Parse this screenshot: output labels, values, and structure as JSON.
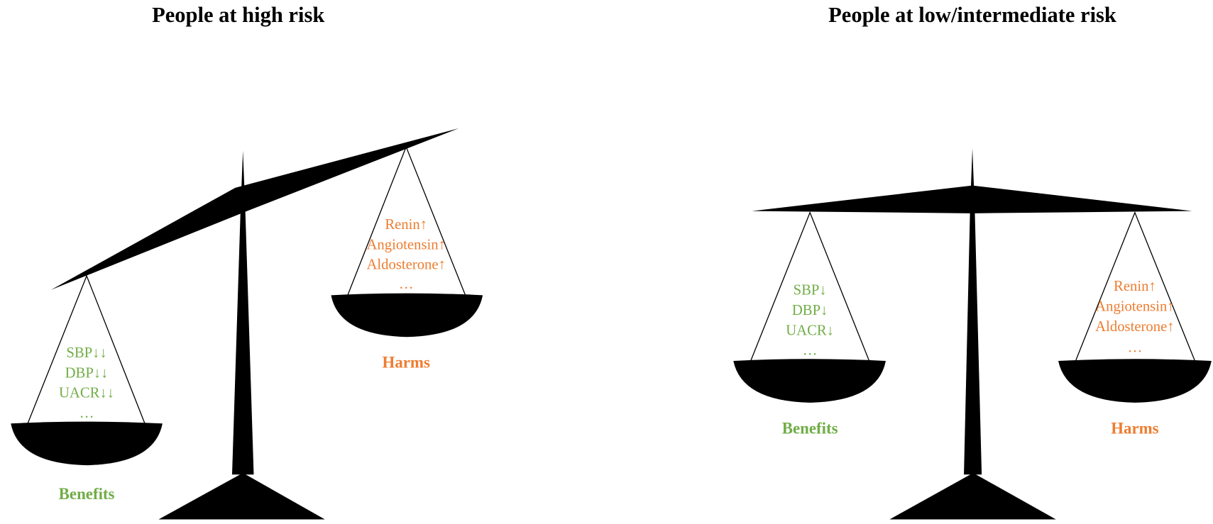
{
  "panels": [
    {
      "title": "People at high risk",
      "left": {
        "items": [
          "SBP↓↓",
          "DBP↓↓",
          "UACR↓↓",
          "…"
        ],
        "label": "Benefits"
      },
      "right": {
        "items": [
          "Renin↑",
          "Angiotensin↑",
          "Aldosterone↑",
          "…"
        ],
        "label": "Harms"
      }
    },
    {
      "title": "People at low/intermediate risk",
      "left": {
        "items": [
          "SBP↓",
          "DBP↓",
          "UACR↓",
          "…"
        ],
        "label": "Benefits"
      },
      "right": {
        "items": [
          "Renin↑",
          "Angiotensin↑",
          "Aldosterone↑",
          "…"
        ],
        "label": "Harms"
      }
    }
  ]
}
